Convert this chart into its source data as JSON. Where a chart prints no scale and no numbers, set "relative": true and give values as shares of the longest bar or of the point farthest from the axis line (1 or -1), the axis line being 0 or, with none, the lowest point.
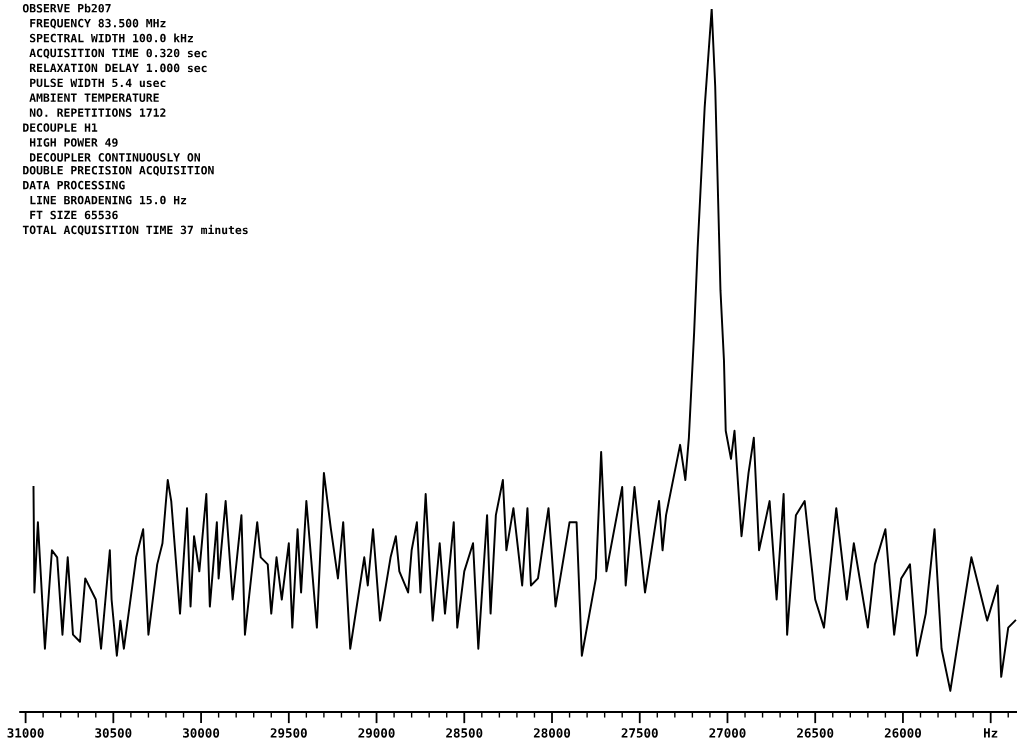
{
  "chart_data": {
    "type": "line",
    "relative": true,
    "annotations": [
      "OBSERVE Pb207\n FREQUENCY 83.500 MHz\n SPECTRAL WIDTH 100.0 kHz\n ACQUISITION TIME 0.320 sec\n RELAXATION DELAY 1.000 sec\n PULSE WIDTH 5.4 usec\n AMBIENT TEMPERATURE\n NO. REPETITIONS 1712\nDECOUPLE H1\n HIGH POWER 49\n DECOUPLER CONTINUOUSLY ON",
      "DOUBLE PRECISION ACQUISITION\nDATA PROCESSING\n LINE BROADENING 15.0 Hz\n FT SIZE 65536\nTOTAL ACQUISITION TIME 37 minutes"
    ],
    "xlim": [
      31030,
      25350
    ],
    "xticks": [
      31000,
      {
        "value": 30900,
        "label": null
      },
      {
        "value": 30800,
        "label": null
      },
      {
        "value": 30700,
        "label": null
      },
      {
        "value": 30600,
        "label": null
      },
      30500,
      {
        "value": 30400,
        "label": null
      },
      {
        "value": 30300,
        "label": null
      },
      {
        "value": 30200,
        "label": null
      },
      {
        "value": 30100,
        "label": null
      },
      30000,
      {
        "value": 29900,
        "label": null
      },
      {
        "value": 29800,
        "label": null
      },
      {
        "value": 29700,
        "label": null
      },
      {
        "value": 29600,
        "label": null
      },
      29500,
      {
        "value": 29400,
        "label": null
      },
      {
        "value": 29300,
        "label": null
      },
      {
        "value": 29200,
        "label": null
      },
      {
        "value": 29100,
        "label": null
      },
      29000,
      {
        "value": 28900,
        "label": null
      },
      {
        "value": 28800,
        "label": null
      },
      {
        "value": 28700,
        "label": null
      },
      {
        "value": 28600,
        "label": null
      },
      28500,
      {
        "value": 28400,
        "label": null
      },
      {
        "value": 28300,
        "label": null
      },
      {
        "value": 28200,
        "label": null
      },
      {
        "value": 28100,
        "label": null
      },
      28000,
      {
        "value": 27900,
        "label": null
      },
      {
        "value": 27800,
        "label": null
      },
      {
        "value": 27700,
        "label": null
      },
      {
        "value": 27600,
        "label": null
      },
      27500,
      {
        "value": 27400,
        "label": null
      },
      {
        "value": 27300,
        "label": null
      },
      {
        "value": 27200,
        "label": null
      },
      {
        "value": 27100,
        "label": null
      },
      27000,
      {
        "value": 26900,
        "label": null
      },
      {
        "value": 26800,
        "label": null
      },
      {
        "value": 26700,
        "label": null
      },
      {
        "value": 26600,
        "label": null
      },
      26500,
      {
        "value": 26400,
        "label": null
      },
      {
        "value": 26300,
        "label": null
      },
      {
        "value": 26200,
        "label": null
      },
      {
        "value": 26100,
        "label": null
      },
      26000,
      {
        "value": 25900,
        "label": null
      },
      {
        "value": 25800,
        "label": null
      },
      {
        "value": 25700,
        "label": null
      },
      {
        "value": 25600,
        "label": null
      },
      {
        "value": 25500,
        "label": "Hz"
      },
      {
        "value": 25400,
        "label": null
      }
    ],
    "tick_labels": "x",
    "grid": false,
    "legend": false,
    "marker": "none",
    "line_style": "solid",
    "series": [
      {
        "color": "#000000",
        "x": [
          30955,
          30950,
          30930,
          30890,
          30850,
          30820,
          30790,
          30760,
          30730,
          30690,
          30660,
          30600,
          30570,
          30520,
          30510,
          30480,
          30460,
          30440,
          30370,
          30330,
          30300,
          30250,
          30220,
          30190,
          30170,
          30120,
          30080,
          30060,
          30040,
          30010,
          29970,
          29950,
          29910,
          29900,
          29860,
          29820,
          29770,
          29750,
          29680,
          29660,
          29620,
          29600,
          29570,
          29540,
          29500,
          29480,
          29450,
          29430,
          29400,
          29380,
          29340,
          29300,
          29260,
          29220,
          29190,
          29150,
          29070,
          29050,
          29020,
          28980,
          28920,
          28890,
          28870,
          28820,
          28800,
          28770,
          28750,
          28720,
          28680,
          28640,
          28610,
          28560,
          28540,
          28500,
          28450,
          28420,
          28370,
          28350,
          28320,
          28280,
          28260,
          28220,
          28170,
          28140,
          28120,
          28080,
          28020,
          27980,
          27900,
          27860,
          27830,
          27750,
          27720,
          27690,
          27600,
          27580,
          27530,
          27470,
          27390,
          27370,
          27350,
          27270,
          27240,
          27220,
          27190,
          27170,
          27130,
          27090,
          27070,
          27040,
          27020,
          27010,
          26980,
          26960,
          26920,
          26880,
          26850,
          26820,
          26760,
          26720,
          26680,
          26660,
          26610,
          26560,
          26500,
          26450,
          26380,
          26320,
          26280,
          26200,
          26160,
          26100,
          26050,
          26010,
          25960,
          25920,
          25870,
          25820,
          25780,
          25730,
          25680,
          25610,
          25520,
          25460,
          25440,
          25400,
          25360
        ],
        "values": [
          0.32,
          0.17,
          0.27,
          0.09,
          0.23,
          0.22,
          0.11,
          0.22,
          0.11,
          0.1,
          0.19,
          0.16,
          0.09,
          0.23,
          0.16,
          0.08,
          0.13,
          0.09,
          0.22,
          0.26,
          0.11,
          0.21,
          0.24,
          0.33,
          0.3,
          0.14,
          0.29,
          0.15,
          0.25,
          0.2,
          0.31,
          0.15,
          0.27,
          0.19,
          0.3,
          0.16,
          0.28,
          0.11,
          0.27,
          0.22,
          0.21,
          0.14,
          0.22,
          0.16,
          0.24,
          0.12,
          0.26,
          0.17,
          0.3,
          0.24,
          0.12,
          0.34,
          0.26,
          0.19,
          0.27,
          0.09,
          0.22,
          0.18,
          0.26,
          0.13,
          0.22,
          0.25,
          0.2,
          0.17,
          0.23,
          0.27,
          0.17,
          0.31,
          0.13,
          0.24,
          0.14,
          0.27,
          0.12,
          0.2,
          0.24,
          0.09,
          0.28,
          0.14,
          0.28,
          0.33,
          0.23,
          0.29,
          0.18,
          0.29,
          0.18,
          0.19,
          0.29,
          0.15,
          0.27,
          0.27,
          0.08,
          0.19,
          0.37,
          0.2,
          0.32,
          0.18,
          0.32,
          0.17,
          0.3,
          0.23,
          0.28,
          0.38,
          0.33,
          0.39,
          0.54,
          0.66,
          0.86,
          1.0,
          0.89,
          0.6,
          0.5,
          0.4,
          0.36,
          0.4,
          0.25,
          0.34,
          0.39,
          0.23,
          0.3,
          0.16,
          0.31,
          0.11,
          0.28,
          0.3,
          0.16,
          0.12,
          0.29,
          0.16,
          0.24,
          0.12,
          0.21,
          0.26,
          0.11,
          0.19,
          0.21,
          0.08,
          0.14,
          0.26,
          0.09,
          0.03,
          0.11,
          0.22,
          0.13,
          0.18,
          0.05,
          0.12,
          0.13
        ]
      }
    ]
  }
}
